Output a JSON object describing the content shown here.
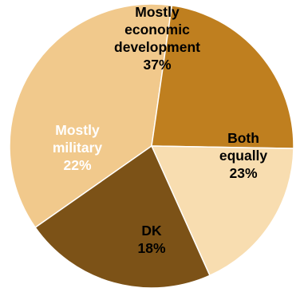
{
  "chart_data": {
    "type": "pie",
    "slices": [
      {
        "label_lines": [
          "Mostly",
          "economic",
          "development",
          "37%"
        ],
        "value": 37,
        "color": "#f1c98c",
        "text_color": "#000000"
      },
      {
        "label_lines": [
          "Both",
          "equally",
          "23%"
        ],
        "value": 23,
        "color": "#bf7f1f",
        "text_color": "#000000"
      },
      {
        "label_lines": [
          "DK",
          "18%"
        ],
        "value": 18,
        "color": "#f8ddb0",
        "text_color": "#000000"
      },
      {
        "label_lines": [
          "Mostly",
          "military",
          "22%"
        ],
        "value": 22,
        "color": "#7c5217",
        "text_color": "#ffffff"
      }
    ]
  }
}
